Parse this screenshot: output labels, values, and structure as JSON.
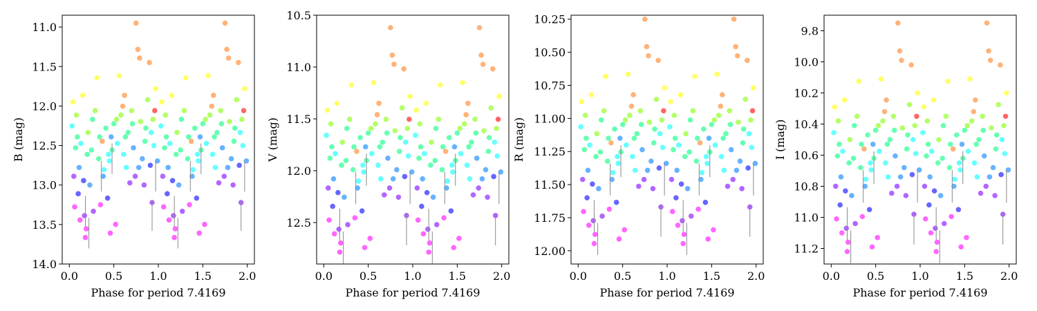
{
  "chart_data": [
    {
      "type": "scatter",
      "title": "",
      "xlabel": "Phase for period 7.4169",
      "ylabel": "B (mag)",
      "xlim": [
        -0.08,
        2.08
      ],
      "ylim": [
        14.0,
        10.85
      ],
      "y_inverted": true,
      "xticks": [
        0.0,
        0.5,
        1.0,
        1.5,
        2.0
      ],
      "xtick_labels": [
        "0.0",
        "0.5",
        "1.0",
        "1.5",
        "2.0"
      ],
      "yticks": [
        11.0,
        11.5,
        12.0,
        12.5,
        13.0,
        13.5,
        14.0
      ],
      "ytick_labels": [
        "11.0",
        "11.5",
        "12.0",
        "12.5",
        "13.0",
        "13.5",
        "14.0"
      ],
      "mag_range": [
        10.95,
        13.72
      ]
    },
    {
      "type": "scatter",
      "title": "",
      "xlabel": "Phase for period 7.4169",
      "ylabel": "V (mag)",
      "xlim": [
        -0.08,
        2.08
      ],
      "ylim": [
        12.9,
        10.5
      ],
      "y_inverted": true,
      "xticks": [
        0.0,
        0.5,
        1.0,
        1.5,
        2.0
      ],
      "xtick_labels": [
        "0.0",
        "0.5",
        "1.0",
        "1.5",
        "2.0"
      ],
      "yticks": [
        10.5,
        11.0,
        11.5,
        12.0,
        12.5
      ],
      "ytick_labels": [
        "10.5",
        "11.0",
        "11.5",
        "12.0",
        "12.5"
      ],
      "mag_range": [
        10.62,
        12.83
      ]
    },
    {
      "type": "scatter",
      "title": "",
      "xlabel": "Phase for period 7.4169",
      "ylabel": "R (mag)",
      "xlim": [
        -0.08,
        2.08
      ],
      "ylim": [
        12.1,
        10.22
      ],
      "y_inverted": true,
      "xticks": [
        0.0,
        0.5,
        1.0,
        1.5,
        2.0
      ],
      "xtick_labels": [
        "0.0",
        "0.5",
        "1.0",
        "1.5",
        "2.0"
      ],
      "yticks": [
        10.25,
        10.5,
        10.75,
        11.0,
        11.25,
        11.5,
        11.75,
        12.0
      ],
      "ytick_labels": [
        "10.25",
        "10.50",
        "10.75",
        "11.00",
        "11.25",
        "11.50",
        "11.75",
        "12.00"
      ],
      "mag_range": [
        10.25,
        11.98
      ]
    },
    {
      "type": "scatter",
      "title": "",
      "xlabel": "Phase for period 7.4169",
      "ylabel": "I (mag)",
      "xlim": [
        -0.08,
        2.08
      ],
      "ylim": [
        11.3,
        9.7
      ],
      "y_inverted": true,
      "xticks": [
        0.0,
        0.5,
        1.0,
        1.5,
        2.0
      ],
      "xtick_labels": [
        "0.0",
        "0.5",
        "1.0",
        "1.5",
        "2.0"
      ],
      "yticks": [
        9.8,
        10.0,
        10.2,
        10.4,
        10.6,
        10.8,
        11.0,
        11.2
      ],
      "ytick_labels": [
        "9.8",
        "10.0",
        "10.2",
        "10.4",
        "10.6",
        "10.8",
        "11.0",
        "11.2"
      ],
      "mag_range": [
        9.75,
        11.25
      ]
    }
  ],
  "series_colors": [
    "#ff0000",
    "#ff7f1e",
    "#ffff00",
    "#7fff00",
    "#00ff7f",
    "#00ffff",
    "#007fff",
    "#0000ff",
    "#7f00ff",
    "#ff00ff"
  ],
  "observations": [
    {
      "phase": 0.03,
      "mag": 0.47,
      "cat": 5
    },
    {
      "phase": 0.04,
      "mag": 0.36,
      "cat": 2
    },
    {
      "phase": 0.05,
      "mag": 0.7,
      "cat": 8
    },
    {
      "phase": 0.06,
      "mag": 0.84,
      "cat": 9
    },
    {
      "phase": 0.08,
      "mag": 0.42,
      "cat": 3
    },
    {
      "phase": 0.09,
      "mag": 0.52,
      "cat": 4
    },
    {
      "phase": 0.1,
      "mag": 0.78,
      "cat": 7
    },
    {
      "phase": 0.12,
      "mag": 0.9,
      "cat": 9
    },
    {
      "phase": 0.13,
      "mag": 0.55,
      "cat": 5
    },
    {
      "phase": 0.15,
      "mag": 0.33,
      "cat": 2
    },
    {
      "phase": 0.17,
      "mag": 0.88,
      "cat": 8
    },
    {
      "phase": 0.19,
      "mag": 0.94,
      "cat": 9
    },
    {
      "phase": 0.2,
      "mag": 0.6,
      "cat": 4
    },
    {
      "phase": 0.21,
      "mag": 0.5,
      "cat": 3
    },
    {
      "phase": 0.23,
      "mag": 0.74,
      "cat": 6
    },
    {
      "phase": 0.25,
      "mag": 0.58,
      "cat": 4
    },
    {
      "phase": 0.27,
      "mag": 0.86,
      "cat": 8
    },
    {
      "phase": 0.29,
      "mag": 0.4,
      "cat": 3
    },
    {
      "phase": 0.31,
      "mag": 0.25,
      "cat": 2
    },
    {
      "phase": 0.33,
      "mag": 0.62,
      "cat": 4
    },
    {
      "phase": 0.35,
      "mag": 0.83,
      "cat": 9
    },
    {
      "phase": 0.37,
      "mag": 0.54,
      "cat": 1
    },
    {
      "phase": 0.39,
      "mag": 0.67,
      "cat": 5
    },
    {
      "phase": 0.41,
      "mag": 0.48,
      "cat": 4
    },
    {
      "phase": 0.43,
      "mag": 0.8,
      "cat": 7
    },
    {
      "phase": 0.45,
      "mag": 0.63,
      "cat": 5
    },
    {
      "phase": 0.47,
      "mag": 0.52,
      "cat": 6
    },
    {
      "phase": 0.48,
      "mag": 0.58,
      "cat": 4
    },
    {
      "phase": 0.5,
      "mag": 0.46,
      "cat": 4
    },
    {
      "phase": 0.52,
      "mag": 0.92,
      "cat": 9
    },
    {
      "phase": 0.54,
      "mag": 0.55,
      "cat": 5
    },
    {
      "phase": 0.56,
      "mag": 0.24,
      "cat": 2
    },
    {
      "phase": 0.58,
      "mag": 0.42,
      "cat": 3
    },
    {
      "phase": 0.6,
      "mag": 0.38,
      "cat": 1
    },
    {
      "phase": 0.62,
      "mag": 0.33,
      "cat": 1
    },
    {
      "phase": 0.64,
      "mag": 0.66,
      "cat": 5
    },
    {
      "phase": 0.66,
      "mag": 0.5,
      "cat": 4
    },
    {
      "phase": 0.68,
      "mag": 0.73,
      "cat": 8
    },
    {
      "phase": 0.7,
      "mag": 0.4,
      "cat": 3
    },
    {
      "phase": 0.72,
      "mag": 0.57,
      "cat": 6
    },
    {
      "phase": 0.74,
      "mag": 0.7,
      "cat": 8
    },
    {
      "phase": 0.75,
      "mag": 0.0,
      "cat": 1
    },
    {
      "phase": 0.77,
      "mag": 0.12,
      "cat": 1
    },
    {
      "phase": 0.79,
      "mag": 0.16,
      "cat": 1
    },
    {
      "phase": 0.8,
      "mag": 0.45,
      "cat": 3
    },
    {
      "phase": 0.82,
      "mag": 0.62,
      "cat": 6
    },
    {
      "phase": 0.84,
      "mag": 0.74,
      "cat": 8
    },
    {
      "phase": 0.86,
      "mag": 0.48,
      "cat": 4
    },
    {
      "phase": 0.88,
      "mag": 0.35,
      "cat": 3
    },
    {
      "phase": 0.9,
      "mag": 0.18,
      "cat": 1
    },
    {
      "phase": 0.92,
      "mag": 0.5,
      "cat": 5
    },
    {
      "phase": 0.93,
      "mag": 0.82,
      "cat": 8
    },
    {
      "phase": 0.95,
      "mag": 0.56,
      "cat": 5
    },
    {
      "phase": 0.96,
      "mag": 0.4,
      "cat": 0
    },
    {
      "phase": 0.97,
      "mag": 0.3,
      "cat": 2
    },
    {
      "phase": 0.99,
      "mag": 0.63,
      "cat": 6
    },
    {
      "phase": 0.18,
      "mag": 0.98,
      "cat": 9
    },
    {
      "phase": 0.46,
      "mag": 0.96,
      "cat": 9
    },
    {
      "phase": 0.11,
      "mag": 0.66,
      "cat": 6
    },
    {
      "phase": 0.26,
      "mag": 0.44,
      "cat": 4
    },
    {
      "phase": 0.34,
      "mag": 0.52,
      "cat": 4
    },
    {
      "phase": 0.44,
      "mag": 0.6,
      "cat": 5
    },
    {
      "phase": 0.53,
      "mag": 0.44,
      "cat": 3
    },
    {
      "phase": 0.63,
      "mag": 0.52,
      "cat": 4
    },
    {
      "phase": 0.71,
      "mag": 0.46,
      "cat": 4
    },
    {
      "phase": 0.85,
      "mag": 0.54,
      "cat": 4
    },
    {
      "phase": 0.94,
      "mag": 0.44,
      "cat": 3
    },
    {
      "phase": 0.07,
      "mag": 0.57,
      "cat": 4
    },
    {
      "phase": 0.16,
      "mag": 0.72,
      "cat": 7
    },
    {
      "phase": 0.38,
      "mag": 0.7,
      "cat": 6
    },
    {
      "phase": 0.61,
      "mag": 0.6,
      "cat": 5
    },
    {
      "phase": 0.78,
      "mag": 0.66,
      "cat": 6
    },
    {
      "phase": 0.91,
      "mag": 0.65,
      "cat": 7
    }
  ],
  "errorbars": [
    {
      "phase": 0.22,
      "mag": 0.96
    },
    {
      "phase": 0.93,
      "mag": 0.88
    },
    {
      "phase": 0.97,
      "mag": 0.7
    },
    {
      "phase": 0.18,
      "mag": 0.86
    },
    {
      "phase": 0.48,
      "mag": 0.62
    },
    {
      "phase": 0.36,
      "mag": 0.7
    }
  ]
}
